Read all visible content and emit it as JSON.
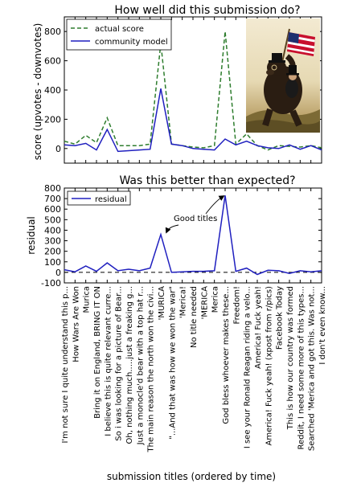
{
  "figure": {
    "xlabel": "submission titles (ordered by time)"
  },
  "chart_data": [
    {
      "type": "line",
      "title": "How well did this submission do?",
      "ylabel": "score (upvotes - downvotes)",
      "xlabel": "",
      "ylim": [
        -100,
        900
      ],
      "yticks": [
        0,
        200,
        400,
        600,
        800
      ],
      "grid": false,
      "legend_position": "top-left",
      "inset_image": "painting of a monocled bear carrying a US flag with a man in a top hat riding on it",
      "series": [
        {
          "name": "actual score",
          "style": "dashed",
          "color": "#2e7d2e",
          "values": [
            50,
            30,
            90,
            40,
            210,
            20,
            20,
            20,
            30,
            720,
            30,
            20,
            10,
            5,
            20,
            800,
            30,
            100,
            20,
            -10,
            20,
            15,
            10,
            20,
            5
          ]
        },
        {
          "name": "community model",
          "style": "solid",
          "color": "#1f1fbf",
          "values": [
            25,
            20,
            35,
            -10,
            130,
            -20,
            -15,
            -10,
            -5,
            410,
            30,
            20,
            0,
            -5,
            -10,
            65,
            25,
            50,
            20,
            5,
            0,
            25,
            -5,
            20,
            -10
          ]
        }
      ]
    },
    {
      "type": "line",
      "title": "Was this better than expected?",
      "ylabel": "residual",
      "xlabel": "",
      "ylim": [
        -100,
        800
      ],
      "yticks": [
        -100,
        0,
        100,
        200,
        300,
        400,
        500,
        600,
        700,
        800
      ],
      "grid": false,
      "legend_position": "top-left",
      "reference_line": 0,
      "annotation": "Good titles",
      "series": [
        {
          "name": "residual",
          "style": "solid",
          "color": "#1f1fbf",
          "values": [
            25,
            5,
            60,
            10,
            90,
            15,
            30,
            15,
            40,
            360,
            0,
            5,
            10,
            10,
            15,
            730,
            10,
            40,
            -20,
            20,
            15,
            -10,
            15,
            5,
            15
          ]
        }
      ],
      "categories": [
        "I'm not sure I quite understand this p...",
        "How Wars Are Won",
        "Murica",
        "Bring it on England, BRING IT ON",
        "I believe this is quite relevant curre...",
        "So i was looking for a picture of Bear...",
        "Oh, nothing much.....just a freaking g...",
        "Just a monocle'd bear with a top hat r...",
        "The main reason the north won the civi...",
        "'MURICA",
        "\"...And that was how we won the war\"",
        "'Merica!",
        "No title needed",
        "'MERICA",
        "Merica",
        "God bless whoever makes these...",
        "Freedom!",
        "I see your Ronald Reagan riding a velo...",
        "America! Fuck yeah!",
        "America! Fuck yeah! (xpost from r/pics)",
        "Facebook Today",
        "This is how our country was formed",
        "Reddit, I need some more of this types...",
        "Searched 'Merica and got this. Was not...",
        "I don't even know..."
      ]
    }
  ]
}
